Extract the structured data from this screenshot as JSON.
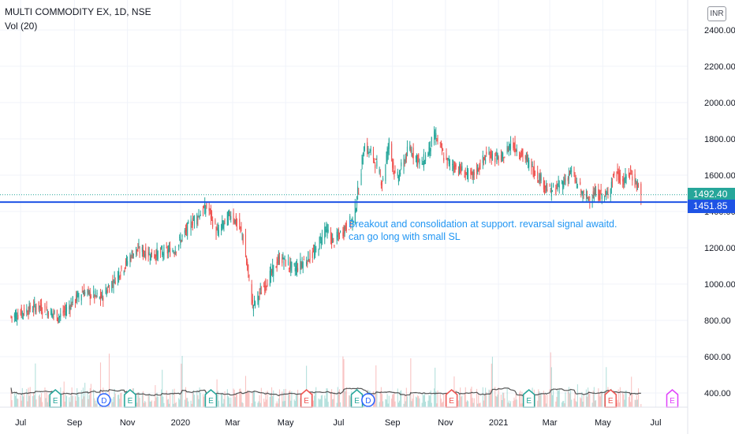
{
  "header": {
    "symbol": "MULTI COMMODITY EX, 1D, NSE",
    "volume_label": "Vol (20)"
  },
  "currency": "INR",
  "annotation": {
    "line1": "Breakout and consolidation at support. revarsal signal awaitd.",
    "line2": "can go long with small SL"
  },
  "price_tags": {
    "last": {
      "text": "1492.40",
      "value": 1492.4,
      "color": "#26a69a"
    },
    "support": {
      "text": "1451.85",
      "value": 1451.85,
      "color": "#1e53e5"
    }
  },
  "colors": {
    "up": "#26a69a",
    "down": "#ef5350",
    "support_line": "#1e53e5",
    "volume_ma": "#555555",
    "text": "#131722",
    "annotation": "#2196f3",
    "grid": "#f0f3fa"
  },
  "chart_data": {
    "type": "candlestick",
    "title": "MULTI COMMODITY EX, 1D, NSE",
    "y_ticks": [
      "2400.00",
      "2200.00",
      "2000.00",
      "1800.00",
      "1600.00",
      "1400.00",
      "1200.00",
      "1000.00",
      "800.00",
      "600.00",
      "400.00"
    ],
    "y_tick_values": [
      2400,
      2200,
      2000,
      1800,
      1600,
      1400,
      1200,
      1000,
      800,
      600,
      400
    ],
    "ylim": [
      310,
      2430
    ],
    "x_ticks": [
      "Jul",
      "Sep",
      "Nov",
      "2020",
      "Mar",
      "May",
      "Jul",
      "Sep",
      "Nov",
      "2021",
      "Mar",
      "May",
      "Jul"
    ],
    "x_tick_dates": [
      "2019-07-01",
      "2019-09-01",
      "2019-11-01",
      "2020-01-01",
      "2020-03-01",
      "2020-05-01",
      "2020-07-01",
      "2020-09-01",
      "2020-11-01",
      "2021-01-01",
      "2021-03-01",
      "2021-05-01",
      "2021-07-01"
    ],
    "x_range": [
      "2019-06-20",
      "2021-07-25"
    ],
    "last_date": "2021-06-14",
    "support_level": 1451.85,
    "last_price": 1492.4,
    "price_path": [
      {
        "date": "2019-06-20",
        "price": 820
      },
      {
        "date": "2019-07-20",
        "price": 880
      },
      {
        "date": "2019-08-15",
        "price": 820
      },
      {
        "date": "2019-09-10",
        "price": 960
      },
      {
        "date": "2019-10-01",
        "price": 920
      },
      {
        "date": "2019-10-25",
        "price": 1080
      },
      {
        "date": "2019-11-10",
        "price": 1190
      },
      {
        "date": "2019-11-30",
        "price": 1160
      },
      {
        "date": "2019-12-25",
        "price": 1190
      },
      {
        "date": "2020-01-15",
        "price": 1350
      },
      {
        "date": "2020-02-01",
        "price": 1430
      },
      {
        "date": "2020-02-12",
        "price": 1280
      },
      {
        "date": "2020-02-28",
        "price": 1390
      },
      {
        "date": "2020-03-12",
        "price": 1280
      },
      {
        "date": "2020-03-24",
        "price": 880
      },
      {
        "date": "2020-04-10",
        "price": 1020
      },
      {
        "date": "2020-04-25",
        "price": 1150
      },
      {
        "date": "2020-05-10",
        "price": 1080
      },
      {
        "date": "2020-06-05",
        "price": 1180
      },
      {
        "date": "2020-06-15",
        "price": 1310
      },
      {
        "date": "2020-06-25",
        "price": 1230
      },
      {
        "date": "2020-07-10",
        "price": 1320
      },
      {
        "date": "2020-07-18",
        "price": 1360
      },
      {
        "date": "2020-07-25",
        "price": 1560
      },
      {
        "date": "2020-07-30",
        "price": 1760
      },
      {
        "date": "2020-08-10",
        "price": 1700
      },
      {
        "date": "2020-08-20",
        "price": 1560
      },
      {
        "date": "2020-08-28",
        "price": 1780
      },
      {
        "date": "2020-09-05",
        "price": 1560
      },
      {
        "date": "2020-09-20",
        "price": 1750
      },
      {
        "date": "2020-10-05",
        "price": 1660
      },
      {
        "date": "2020-10-20",
        "price": 1820
      },
      {
        "date": "2020-11-01",
        "price": 1680
      },
      {
        "date": "2020-11-15",
        "price": 1640
      },
      {
        "date": "2020-12-01",
        "price": 1590
      },
      {
        "date": "2020-12-20",
        "price": 1720
      },
      {
        "date": "2021-01-05",
        "price": 1680
      },
      {
        "date": "2021-01-15",
        "price": 1780
      },
      {
        "date": "2021-02-01",
        "price": 1690
      },
      {
        "date": "2021-02-15",
        "price": 1600
      },
      {
        "date": "2021-03-01",
        "price": 1510
      },
      {
        "date": "2021-03-15",
        "price": 1550
      },
      {
        "date": "2021-03-25",
        "price": 1620
      },
      {
        "date": "2021-04-10",
        "price": 1470
      },
      {
        "date": "2021-04-25",
        "price": 1500
      },
      {
        "date": "2021-05-05",
        "price": 1480
      },
      {
        "date": "2021-05-15",
        "price": 1620
      },
      {
        "date": "2021-05-25",
        "price": 1560
      },
      {
        "date": "2021-06-01",
        "price": 1620
      },
      {
        "date": "2021-06-10",
        "price": 1540
      },
      {
        "date": "2021-06-14",
        "price": 1492
      }
    ],
    "events": [
      {
        "date": "2019-08-10",
        "label": "E",
        "kind": "earnings"
      },
      {
        "date": "2019-10-05",
        "label": "D",
        "kind": "dividend"
      },
      {
        "date": "2019-11-04",
        "label": "E",
        "kind": "earnings"
      },
      {
        "date": "2020-02-05",
        "label": "E",
        "kind": "earnings"
      },
      {
        "date": "2020-05-25",
        "label": "E",
        "kind": "earnings-negative"
      },
      {
        "date": "2020-07-22",
        "label": "E",
        "kind": "earnings"
      },
      {
        "date": "2020-08-04",
        "label": "D",
        "kind": "dividend"
      },
      {
        "date": "2020-11-08",
        "label": "E",
        "kind": "earnings-negative"
      },
      {
        "date": "2021-02-05",
        "label": "E",
        "kind": "earnings"
      },
      {
        "date": "2021-05-10",
        "label": "E",
        "kind": "earnings-negative"
      },
      {
        "date": "2021-07-20",
        "label": "E",
        "kind": "earnings-upcoming"
      }
    ]
  }
}
